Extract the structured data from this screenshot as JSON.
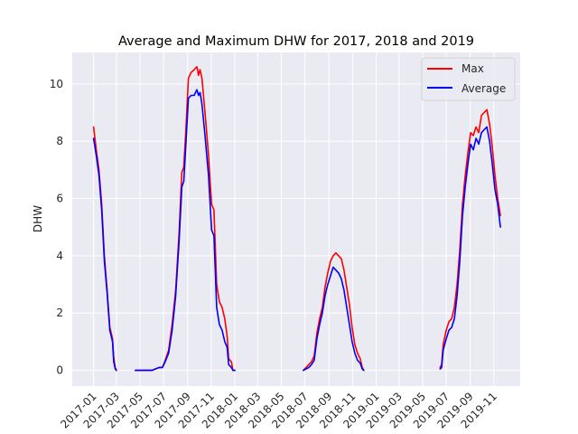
{
  "chart_data": {
    "type": "line",
    "title": "Average and Maximum DHW for 2017, 2018 and 2019",
    "xlabel": "",
    "ylabel": "DHW",
    "ylim": [
      -0.55,
      11.1
    ],
    "yticks": [
      0,
      2,
      4,
      6,
      8,
      10
    ],
    "xlim": [
      "2016-11-07",
      "2020-01-08"
    ],
    "xticks": [
      "2017-01",
      "2017-03",
      "2017-05",
      "2017-07",
      "2017-09",
      "2017-11",
      "2018-01",
      "2018-03",
      "2018-05",
      "2018-07",
      "2018-09",
      "2018-11",
      "2019-01",
      "2019-03",
      "2019-05",
      "2019-07",
      "2019-09",
      "2019-11"
    ],
    "grid": true,
    "legend_position": "top-right",
    "series": [
      {
        "name": "Max",
        "color": "#ff0000",
        "segments": [
          [
            [
              "2017-01-01",
              8.5
            ],
            [
              "2017-01-08",
              7.7
            ],
            [
              "2017-01-15",
              7.0
            ],
            [
              "2017-01-22",
              5.8
            ],
            [
              "2017-01-29",
              4.0
            ],
            [
              "2017-02-05",
              2.8
            ],
            [
              "2017-02-12",
              1.5
            ],
            [
              "2017-02-19",
              1.1
            ],
            [
              "2017-02-22",
              0.45
            ],
            [
              "2017-02-26",
              0.1
            ],
            [
              "2017-03-01",
              0.0
            ]
          ],
          [
            [
              "2017-04-19",
              0.0
            ],
            [
              "2017-05-10",
              0.0
            ],
            [
              "2017-06-01",
              0.0
            ],
            [
              "2017-06-10",
              0.05
            ],
            [
              "2017-06-20",
              0.1
            ],
            [
              "2017-06-28",
              0.1
            ],
            [
              "2017-07-05",
              0.35
            ],
            [
              "2017-07-14",
              0.7
            ],
            [
              "2017-07-23",
              1.6
            ],
            [
              "2017-08-01",
              2.8
            ],
            [
              "2017-08-10",
              4.8
            ],
            [
              "2017-08-17",
              6.9
            ],
            [
              "2017-08-22",
              7.1
            ],
            [
              "2017-08-28",
              8.5
            ],
            [
              "2017-09-03",
              10.2
            ],
            [
              "2017-09-10",
              10.4
            ],
            [
              "2017-09-18",
              10.5
            ],
            [
              "2017-09-25",
              10.6
            ],
            [
              "2017-09-29",
              10.3
            ],
            [
              "2017-10-03",
              10.5
            ],
            [
              "2017-10-08",
              10.2
            ],
            [
              "2017-10-16",
              9.0
            ],
            [
              "2017-10-25",
              7.5
            ],
            [
              "2017-11-02",
              5.8
            ],
            [
              "2017-11-08",
              5.6
            ],
            [
              "2017-11-15",
              3.0
            ],
            [
              "2017-11-22",
              2.4
            ],
            [
              "2017-11-29",
              2.2
            ],
            [
              "2017-12-06",
              1.8
            ],
            [
              "2017-12-12",
              1.2
            ],
            [
              "2017-12-16",
              0.4
            ],
            [
              "2017-12-23",
              0.3
            ],
            [
              "2017-12-27",
              0.0
            ],
            [
              "2018-01-01",
              0.0
            ]
          ],
          [
            [
              "2018-06-27",
              0.0
            ],
            [
              "2018-07-04",
              0.1
            ],
            [
              "2018-07-11",
              0.2
            ],
            [
              "2018-07-18",
              0.3
            ],
            [
              "2018-07-25",
              0.5
            ],
            [
              "2018-08-01",
              1.3
            ],
            [
              "2018-08-08",
              1.8
            ],
            [
              "2018-08-15",
              2.2
            ],
            [
              "2018-08-22",
              2.9
            ],
            [
              "2018-08-29",
              3.4
            ],
            [
              "2018-09-05",
              3.8
            ],
            [
              "2018-09-12",
              4.0
            ],
            [
              "2018-09-19",
              4.1
            ],
            [
              "2018-09-26",
              4.0
            ],
            [
              "2018-10-03",
              3.9
            ],
            [
              "2018-10-10",
              3.5
            ],
            [
              "2018-10-17",
              2.9
            ],
            [
              "2018-10-24",
              2.3
            ],
            [
              "2018-10-31",
              1.5
            ],
            [
              "2018-11-07",
              0.9
            ],
            [
              "2018-11-14",
              0.6
            ],
            [
              "2018-11-21",
              0.4
            ],
            [
              "2018-11-26",
              0.1
            ],
            [
              "2018-11-30",
              0.0
            ]
          ],
          [
            [
              "2019-06-15",
              0.1
            ],
            [
              "2019-06-19",
              0.2
            ],
            [
              "2019-06-23",
              0.9
            ],
            [
              "2019-07-01",
              1.4
            ],
            [
              "2019-07-08",
              1.7
            ],
            [
              "2019-07-15",
              1.8
            ],
            [
              "2019-07-22",
              2.2
            ],
            [
              "2019-07-29",
              3.0
            ],
            [
              "2019-08-05",
              4.2
            ],
            [
              "2019-08-12",
              5.8
            ],
            [
              "2019-08-19",
              6.8
            ],
            [
              "2019-08-26",
              7.6
            ],
            [
              "2019-09-02",
              8.3
            ],
            [
              "2019-09-09",
              8.2
            ],
            [
              "2019-09-16",
              8.5
            ],
            [
              "2019-09-23",
              8.3
            ],
            [
              "2019-09-30",
              8.9
            ],
            [
              "2019-10-07",
              9.0
            ],
            [
              "2019-10-14",
              9.1
            ],
            [
              "2019-10-21",
              8.6
            ],
            [
              "2019-10-28",
              7.8
            ],
            [
              "2019-11-04",
              6.8
            ],
            [
              "2019-11-11",
              6.0
            ],
            [
              "2019-11-18",
              5.4
            ]
          ]
        ]
      },
      {
        "name": "Average",
        "color": "#0000ff",
        "segments": [
          [
            [
              "2017-01-01",
              8.1
            ],
            [
              "2017-01-08",
              7.5
            ],
            [
              "2017-01-15",
              6.8
            ],
            [
              "2017-01-22",
              5.6
            ],
            [
              "2017-01-29",
              3.8
            ],
            [
              "2017-02-05",
              2.7
            ],
            [
              "2017-02-12",
              1.4
            ],
            [
              "2017-02-19",
              1.0
            ],
            [
              "2017-02-22",
              0.3
            ],
            [
              "2017-02-26",
              0.05
            ],
            [
              "2017-03-01",
              0.0
            ]
          ],
          [
            [
              "2017-04-19",
              0.0
            ],
            [
              "2017-05-10",
              0.0
            ],
            [
              "2017-06-01",
              0.0
            ],
            [
              "2017-06-10",
              0.05
            ],
            [
              "2017-06-20",
              0.1
            ],
            [
              "2017-06-28",
              0.1
            ],
            [
              "2017-07-05",
              0.3
            ],
            [
              "2017-07-14",
              0.6
            ],
            [
              "2017-07-23",
              1.4
            ],
            [
              "2017-08-01",
              2.6
            ],
            [
              "2017-08-10",
              4.5
            ],
            [
              "2017-08-17",
              6.4
            ],
            [
              "2017-08-22",
              6.6
            ],
            [
              "2017-08-28",
              8.0
            ],
            [
              "2017-09-03",
              9.5
            ],
            [
              "2017-09-10",
              9.6
            ],
            [
              "2017-09-18",
              9.6
            ],
            [
              "2017-09-25",
              9.8
            ],
            [
              "2017-09-29",
              9.6
            ],
            [
              "2017-10-03",
              9.7
            ],
            [
              "2017-10-08",
              9.3
            ],
            [
              "2017-10-16",
              8.2
            ],
            [
              "2017-10-25",
              6.8
            ],
            [
              "2017-11-02",
              4.9
            ],
            [
              "2017-11-08",
              4.7
            ],
            [
              "2017-11-15",
              2.2
            ],
            [
              "2017-11-22",
              1.6
            ],
            [
              "2017-11-29",
              1.4
            ],
            [
              "2017-12-06",
              1.0
            ],
            [
              "2017-12-12",
              0.8
            ],
            [
              "2017-12-16",
              0.2
            ],
            [
              "2017-12-23",
              0.1
            ],
            [
              "2017-12-27",
              0.0
            ],
            [
              "2018-01-01",
              0.0
            ]
          ],
          [
            [
              "2018-06-27",
              0.0
            ],
            [
              "2018-07-04",
              0.05
            ],
            [
              "2018-07-11",
              0.1
            ],
            [
              "2018-07-18",
              0.2
            ],
            [
              "2018-07-25",
              0.35
            ],
            [
              "2018-08-01",
              1.1
            ],
            [
              "2018-08-08",
              1.6
            ],
            [
              "2018-08-15",
              2.0
            ],
            [
              "2018-08-22",
              2.6
            ],
            [
              "2018-08-29",
              3.0
            ],
            [
              "2018-09-05",
              3.3
            ],
            [
              "2018-09-12",
              3.6
            ],
            [
              "2018-09-19",
              3.5
            ],
            [
              "2018-09-26",
              3.4
            ],
            [
              "2018-10-03",
              3.2
            ],
            [
              "2018-10-10",
              2.8
            ],
            [
              "2018-10-17",
              2.2
            ],
            [
              "2018-10-24",
              1.6
            ],
            [
              "2018-10-31",
              1.0
            ],
            [
              "2018-11-07",
              0.6
            ],
            [
              "2018-11-14",
              0.35
            ],
            [
              "2018-11-21",
              0.25
            ],
            [
              "2018-11-26",
              0.05
            ],
            [
              "2018-11-30",
              0.0
            ]
          ],
          [
            [
              "2019-06-15",
              0.05
            ],
            [
              "2019-06-19",
              0.1
            ],
            [
              "2019-06-23",
              0.7
            ],
            [
              "2019-07-01",
              1.1
            ],
            [
              "2019-07-08",
              1.4
            ],
            [
              "2019-07-15",
              1.5
            ],
            [
              "2019-07-22",
              1.8
            ],
            [
              "2019-07-29",
              2.6
            ],
            [
              "2019-08-05",
              3.8
            ],
            [
              "2019-08-12",
              5.4
            ],
            [
              "2019-08-19",
              6.4
            ],
            [
              "2019-08-26",
              7.2
            ],
            [
              "2019-09-02",
              7.9
            ],
            [
              "2019-09-09",
              7.7
            ],
            [
              "2019-09-16",
              8.1
            ],
            [
              "2019-09-23",
              7.9
            ],
            [
              "2019-09-30",
              8.3
            ],
            [
              "2019-10-07",
              8.4
            ],
            [
              "2019-10-14",
              8.5
            ],
            [
              "2019-10-21",
              8.0
            ],
            [
              "2019-10-28",
              7.2
            ],
            [
              "2019-11-04",
              6.3
            ],
            [
              "2019-11-11",
              5.8
            ],
            [
              "2019-11-18",
              5.0
            ]
          ]
        ]
      }
    ]
  }
}
